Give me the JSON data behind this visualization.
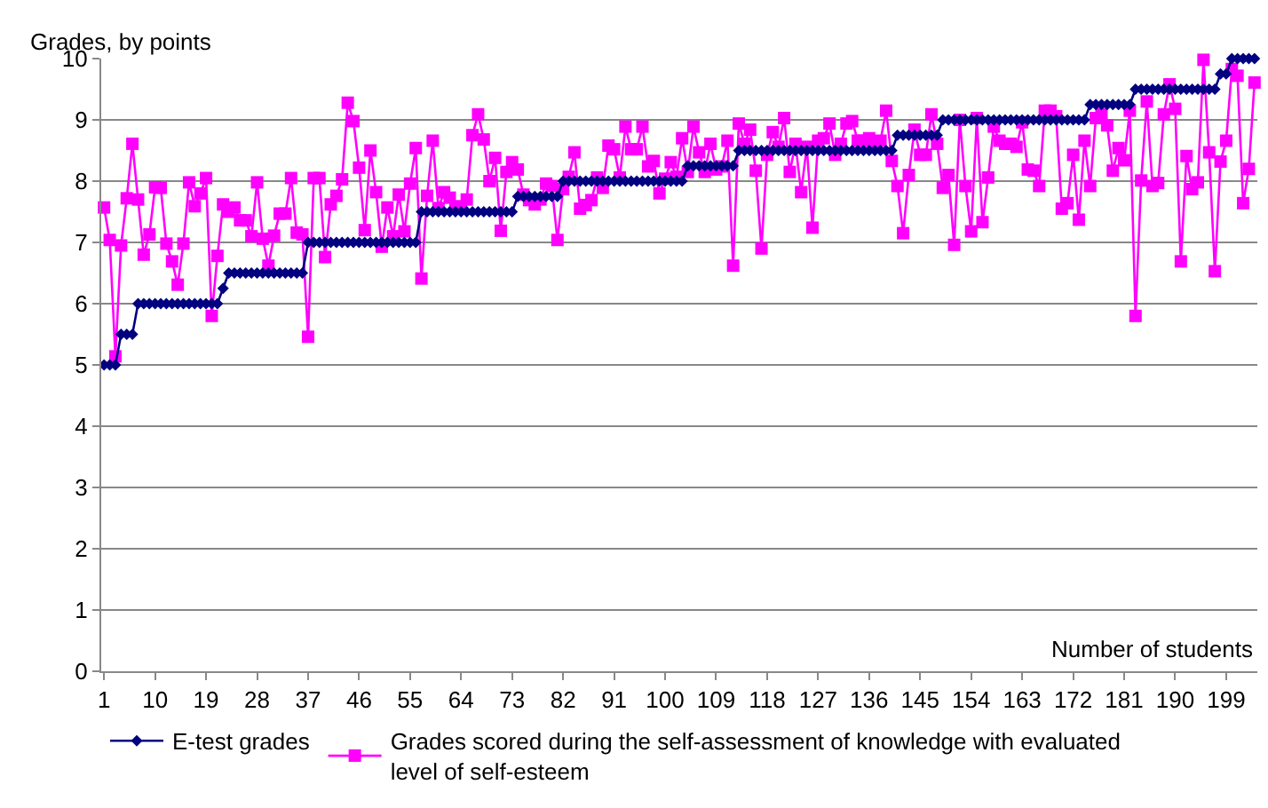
{
  "chart_data": {
    "type": "line",
    "ylabel": "Grades, by points",
    "xlabel": "Number of students",
    "x": [
      1,
      2,
      3,
      4,
      5,
      6,
      7,
      8,
      9,
      10,
      11,
      12,
      13,
      14,
      15,
      16,
      17,
      18,
      19,
      20,
      21,
      22,
      23,
      24,
      25,
      26,
      27,
      28,
      29,
      30,
      31,
      32,
      33,
      34,
      35,
      36,
      37,
      38,
      39,
      40,
      41,
      42,
      43,
      44,
      45,
      46,
      47,
      48,
      49,
      50,
      51,
      52,
      53,
      54,
      55,
      56,
      57,
      58,
      59,
      60,
      61,
      62,
      63,
      64,
      65,
      66,
      67,
      68,
      69,
      70,
      71,
      72,
      73,
      74,
      75,
      76,
      77,
      78,
      79,
      80,
      81,
      82,
      83,
      84,
      85,
      86,
      87,
      88,
      89,
      90,
      91,
      92,
      93,
      94,
      95,
      96,
      97,
      98,
      99,
      100,
      101,
      102,
      103,
      104,
      105,
      106,
      107,
      108,
      109,
      110,
      111,
      112,
      113,
      114,
      115,
      116,
      117,
      118,
      119,
      120,
      121,
      122,
      123,
      124,
      125,
      126,
      127,
      128,
      129,
      130,
      131,
      132,
      133,
      134,
      135,
      136,
      137,
      138,
      139,
      140,
      141,
      142,
      143,
      144,
      145,
      146,
      147,
      148,
      149,
      150,
      151,
      152,
      153,
      154,
      155,
      156,
      157,
      158,
      159,
      160,
      161,
      162,
      163,
      164,
      165,
      166,
      167,
      168,
      169,
      170,
      171,
      172,
      173,
      174,
      175,
      176,
      177,
      178,
      179,
      180,
      181,
      182,
      183,
      184,
      185,
      186,
      187,
      188,
      189,
      190,
      191,
      192,
      193,
      194,
      195,
      196,
      197,
      198,
      199,
      200,
      201,
      202,
      203,
      204
    ],
    "series": [
      {
        "name": "E-test grades",
        "color": "#000080",
        "marker": "diamond",
        "values": [
          5,
          5,
          5,
          5.5,
          5.5,
          5.5,
          6,
          6,
          6,
          6,
          6,
          6,
          6,
          6,
          6,
          6,
          6,
          6,
          6,
          6,
          6,
          6.25,
          6.5,
          6.5,
          6.5,
          6.5,
          6.5,
          6.5,
          6.5,
          6.5,
          6.5,
          6.5,
          6.5,
          6.5,
          6.5,
          6.5,
          7,
          7,
          7,
          7,
          7,
          7,
          7,
          7,
          7,
          7,
          7,
          7,
          7,
          7,
          7,
          7,
          7,
          7,
          7,
          7,
          7.5,
          7.5,
          7.5,
          7.5,
          7.5,
          7.5,
          7.5,
          7.5,
          7.5,
          7.5,
          7.5,
          7.5,
          7.5,
          7.5,
          7.5,
          7.5,
          7.5,
          7.75,
          7.75,
          7.75,
          7.75,
          7.75,
          7.75,
          7.75,
          7.75,
          8,
          8,
          8,
          8,
          8,
          8,
          8,
          8,
          8,
          8,
          8,
          8,
          8,
          8,
          8,
          8,
          8,
          8,
          8,
          8,
          8,
          8,
          8.25,
          8.25,
          8.25,
          8.25,
          8.25,
          8.25,
          8.25,
          8.25,
          8.25,
          8.5,
          8.5,
          8.5,
          8.5,
          8.5,
          8.5,
          8.5,
          8.5,
          8.5,
          8.5,
          8.5,
          8.5,
          8.5,
          8.5,
          8.5,
          8.5,
          8.5,
          8.5,
          8.5,
          8.5,
          8.5,
          8.5,
          8.5,
          8.5,
          8.5,
          8.5,
          8.5,
          8.5,
          8.75,
          8.75,
          8.75,
          8.75,
          8.75,
          8.75,
          8.75,
          8.75,
          9,
          9,
          9,
          9,
          9,
          9,
          9,
          9,
          9,
          9,
          9,
          9,
          9,
          9,
          9,
          9,
          9,
          9,
          9,
          9,
          9,
          9,
          9,
          9,
          9,
          9,
          9.25,
          9.25,
          9.25,
          9.25,
          9.25,
          9.25,
          9.25,
          9.25,
          9.5,
          9.5,
          9.5,
          9.5,
          9.5,
          9.5,
          9.5,
          9.5,
          9.5,
          9.5,
          9.5,
          9.5,
          9.5,
          9.5,
          9.5,
          9.75,
          9.75,
          10,
          10,
          10,
          10,
          10
        ]
      },
      {
        "name": "Grades scored during the self-assessment of knowledge with evaluated level of self-esteem",
        "color": "#ff00ff",
        "marker": "square",
        "values": [
          7.57,
          7.04,
          5.14,
          6.95,
          7.72,
          8.61,
          7.7,
          6.8,
          7.13,
          7.9,
          7.89,
          6.98,
          6.69,
          6.31,
          6.98,
          7.98,
          7.59,
          7.8,
          8.05,
          5.8,
          6.78,
          7.62,
          7.5,
          7.57,
          7.36,
          7.36,
          7.1,
          7.98,
          7.06,
          6.62,
          7.11,
          7.47,
          7.47,
          8.05,
          7.16,
          7.13,
          5.46,
          8.05,
          8.05,
          6.76,
          7.62,
          7.76,
          8.03,
          9.28,
          8.98,
          8.22,
          7.2,
          8.5,
          7.82,
          6.93,
          7.57,
          7.1,
          7.78,
          7.18,
          7.96,
          8.54,
          6.41,
          7.76,
          8.66,
          7.56,
          7.82,
          7.73,
          7.59,
          7.55,
          7.7,
          8.75,
          9.09,
          8.68,
          8.0,
          8.38,
          7.19,
          8.15,
          8.31,
          8.19,
          7.78,
          7.69,
          7.62,
          7.7,
          7.96,
          7.92,
          7.04,
          7.87,
          8.07,
          8.47,
          7.55,
          7.61,
          7.69,
          8.06,
          7.89,
          8.58,
          8.52,
          8.06,
          8.89,
          8.52,
          8.52,
          8.89,
          8.24,
          8.33,
          7.8,
          8.04,
          8.31,
          8.07,
          8.7,
          8.15,
          8.89,
          8.47,
          8.15,
          8.61,
          8.19,
          8.24,
          8.66,
          6.62,
          8.94,
          8.61,
          8.84,
          8.17,
          6.9,
          8.43,
          8.8,
          8.56,
          9.03,
          8.15,
          8.61,
          7.82,
          8.56,
          7.24,
          8.66,
          8.7,
          8.94,
          8.43,
          8.61,
          8.94,
          8.98,
          8.66,
          8.66,
          8.7,
          8.61,
          8.66,
          9.15,
          8.33,
          7.92,
          7.15,
          8.1,
          8.84,
          8.43,
          8.43,
          9.09,
          8.61,
          7.89,
          8.1,
          6.96,
          9.0,
          7.92,
          7.18,
          9.03,
          7.33,
          8.06,
          8.89,
          8.66,
          8.61,
          8.61,
          8.56,
          8.96,
          8.19,
          8.17,
          7.92,
          9.15,
          9.15,
          9.06,
          7.55,
          7.64,
          8.43,
          7.37,
          8.66,
          7.92,
          9.03,
          9.09,
          8.91,
          8.17,
          8.54,
          8.34,
          9.15,
          5.8,
          8.01,
          9.3,
          7.92,
          7.97,
          9.09,
          9.58,
          9.18,
          6.69,
          8.41,
          7.87,
          7.98,
          9.98,
          8.47,
          6.53,
          8.32,
          8.66,
          9.83,
          9.72,
          7.64,
          8.2,
          9.61
        ]
      }
    ],
    "xlim": [
      0.5,
      204.5
    ],
    "xticks": [
      1,
      10,
      19,
      28,
      37,
      46,
      55,
      64,
      73,
      82,
      91,
      100,
      109,
      118,
      127,
      136,
      145,
      154,
      163,
      172,
      181,
      190,
      199
    ],
    "ylim": [
      0,
      10
    ],
    "yticks": [
      0,
      1,
      2,
      3,
      4,
      5,
      6,
      7,
      8,
      9,
      10
    ],
    "grid": "y",
    "legend": "bottom",
    "line_style": "solid"
  }
}
